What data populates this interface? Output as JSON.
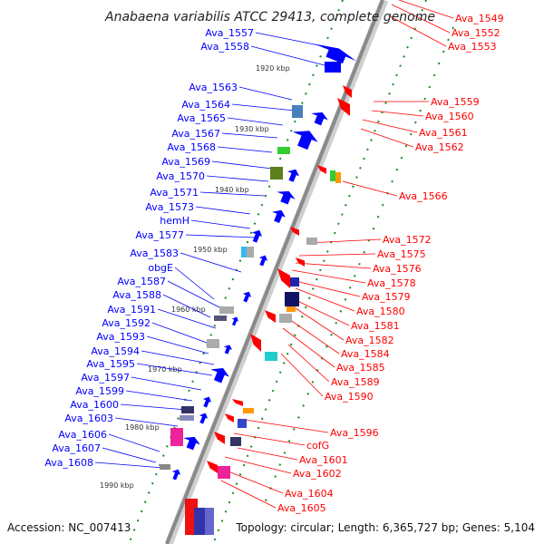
{
  "title": "Anabaena variabilis ATCC 29413, complete genome",
  "footer": {
    "accession": "Accession: NC_007413",
    "summary": "Topology: circular; Length: 6,365,727 bp; Genes: 5,104"
  },
  "colors": {
    "left_genes": "#0000ff",
    "right_genes": "#ff0000",
    "backbone": "#8a8a8a",
    "tick": "#1a8a1a"
  },
  "ticks": [
    "1920 kbp",
    "1930 kbp",
    "1940 kbp",
    "1950 kbp",
    "1960 kbp",
    "1970 kbp",
    "1980 kbp",
    "1990 kbp"
  ],
  "left_labels": [
    "Ava_1557",
    "Ava_1558",
    "Ava_1563",
    "Ava_1564",
    "Ava_1565",
    "Ava_1567",
    "Ava_1568",
    "Ava_1569",
    "Ava_1570",
    "Ava_1571",
    "Ava_1573",
    "hemH",
    "Ava_1577",
    "Ava_1583",
    "obgE",
    "Ava_1587",
    "Ava_1588",
    "Ava_1591",
    "Ava_1592",
    "Ava_1593",
    "Ava_1594",
    "Ava_1595",
    "Ava_1597",
    "Ava_1599",
    "Ava_1600",
    "Ava_1603",
    "Ava_1606",
    "Ava_1607",
    "Ava_1608"
  ],
  "right_labels": [
    "Ava_1549",
    "Ava_1552",
    "Ava_1553",
    "Ava_1559",
    "Ava_1560",
    "Ava_1561",
    "Ava_1562",
    "Ava_1566",
    "Ava_1572",
    "Ava_1575",
    "Ava_1576",
    "Ava_1578",
    "Ava_1579",
    "Ava_1580",
    "Ava_1581",
    "Ava_1582",
    "Ava_1584",
    "Ava_1585",
    "Ava_1589",
    "Ava_1590",
    "Ava_1596",
    "cofG",
    "Ava_1601",
    "Ava_1602",
    "Ava_1604",
    "Ava_1605"
  ]
}
